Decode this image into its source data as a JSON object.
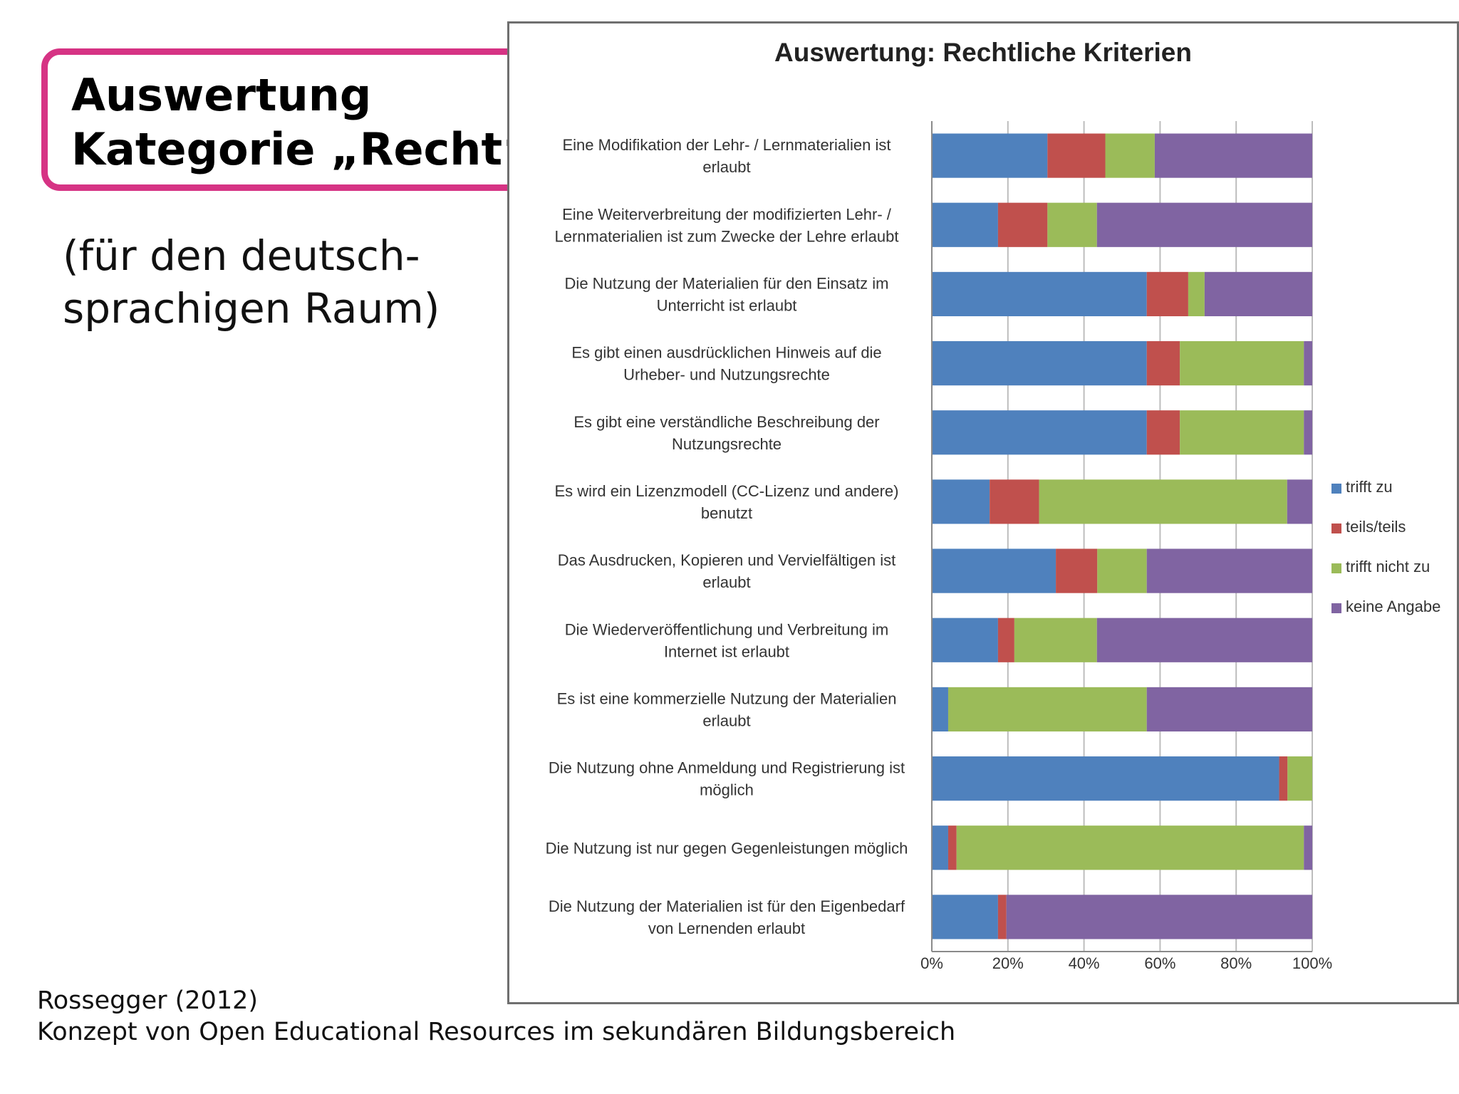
{
  "slide": {
    "title_line1": "Auswertung",
    "title_line2": "Kategorie „Recht“",
    "subtitle_line1": "(für den deutsch-",
    "subtitle_line2": "sprachigen Raum)",
    "citation_line1": "Rossegger (2012)",
    "citation_line2": "Konzept von Open Educational Resources im sekundären Bildungsbereich"
  },
  "colors": {
    "accent_border": "#d63384",
    "trifft_zu": "#4f81bd",
    "teils_teils": "#c0504d",
    "trifft_nicht_zu": "#9bbb59",
    "keine_angabe": "#8064a2"
  },
  "chart_data": {
    "type": "bar",
    "orientation": "horizontal",
    "stacked": "percent",
    "title": "Auswertung: Rechtliche Kriterien",
    "xlabel": "",
    "ylabel": "",
    "xlim": [
      0,
      100
    ],
    "x_ticks": [
      "0%",
      "20%",
      "40%",
      "60%",
      "80%",
      "100%"
    ],
    "grid": "vertical",
    "legend_position": "right",
    "categories": [
      [
        "Eine Modifikation der Lehr- / Lernmaterialien ist",
        "erlaubt"
      ],
      [
        "Eine Weiterverbreitung der modifizierten Lehr- /",
        "Lernmaterialien ist zum Zwecke der Lehre erlaubt"
      ],
      [
        "Die Nutzung der Materialien für den Einsatz im",
        "Unterricht ist erlaubt"
      ],
      [
        "Es gibt einen ausdrücklichen Hinweis auf die",
        "Urheber- und Nutzungsrechte"
      ],
      [
        "Es gibt eine verständliche Beschreibung der",
        "Nutzungsrechte"
      ],
      [
        "Es wird ein Lizenzmodell (CC-Lizenz und andere)",
        "benutzt"
      ],
      [
        "Das Ausdrucken, Kopieren und Vervielfältigen ist",
        "erlaubt"
      ],
      [
        "Die Wiederveröffentlichung und Verbreitung im",
        "Internet ist erlaubt"
      ],
      [
        "Es ist eine kommerzielle Nutzung der Materialien",
        "erlaubt"
      ],
      [
        "Die Nutzung ohne Anmeldung und Registrierung ist",
        "möglich"
      ],
      [
        "Die Nutzung ist nur gegen Gegenleistungen  möglich"
      ],
      [
        "Die Nutzung der Materialien ist für den Eigenbedarf",
        "von Lernenden erlaubt"
      ]
    ],
    "series": [
      {
        "name": "trifft zu",
        "values": [
          30.4,
          17.4,
          56.5,
          56.5,
          56.5,
          15.2,
          32.6,
          17.4,
          4.3,
          91.3,
          4.3,
          17.4
        ]
      },
      {
        "name": "teils/teils",
        "values": [
          15.2,
          13.0,
          10.9,
          8.7,
          8.7,
          13.0,
          10.9,
          4.3,
          0,
          2.2,
          2.2,
          2.2
        ]
      },
      {
        "name": "trifft nicht zu",
        "values": [
          13.0,
          13.0,
          4.3,
          32.6,
          32.6,
          65.2,
          13.0,
          21.7,
          52.2,
          6.5,
          91.3,
          0
        ]
      },
      {
        "name": "keine Angabe",
        "values": [
          41.4,
          56.6,
          28.3,
          2.2,
          2.2,
          6.6,
          43.5,
          56.6,
          43.5,
          0,
          2.2,
          80.4
        ]
      }
    ]
  }
}
